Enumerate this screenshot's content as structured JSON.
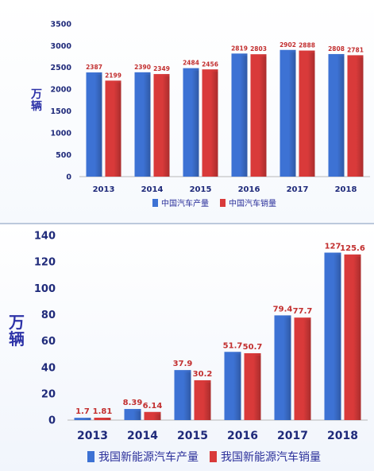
{
  "colors": {
    "production": "#3d72d4",
    "sales": "#d93a3a",
    "axis_text": "#1f2a7a",
    "label_text": "#c22f2f"
  },
  "chart_data": [
    {
      "type": "bar",
      "categories": [
        "2013",
        "2014",
        "2015",
        "2016",
        "2017",
        "2018"
      ],
      "series": [
        {
          "name": "中国汽车产量",
          "values": [
            2387,
            2390,
            2484,
            2819,
            2902,
            2808
          ]
        },
        {
          "name": "中国汽车销量",
          "values": [
            2199,
            2349,
            2456,
            2803,
            2888,
            2781
          ]
        }
      ],
      "ylabel": "万辆",
      "ylim": [
        0,
        3500
      ],
      "yticks": [
        0,
        500,
        1000,
        1500,
        2000,
        2500,
        3000,
        3500
      ],
      "grid": false,
      "legend_position": "bottom"
    },
    {
      "type": "bar",
      "categories": [
        "2013",
        "2014",
        "2015",
        "2016",
        "2017",
        "2018"
      ],
      "series": [
        {
          "name": "我国新能源汽车产量",
          "values": [
            1.7,
            8.39,
            37.9,
            51.7,
            79.4,
            127
          ]
        },
        {
          "name": "我国新能源汽车销量",
          "values": [
            1.81,
            6.14,
            30.2,
            50.7,
            77.7,
            125.6
          ]
        }
      ],
      "ylabel": "万辆",
      "ylim": [
        0,
        140
      ],
      "yticks": [
        0,
        20,
        40,
        60,
        80,
        100,
        120,
        140
      ],
      "grid": false,
      "legend_position": "bottom"
    }
  ]
}
